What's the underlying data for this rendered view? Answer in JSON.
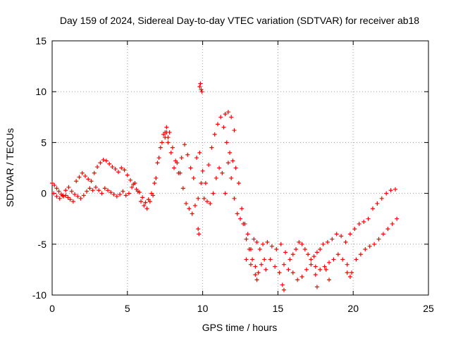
{
  "chart_data": {
    "type": "scatter",
    "title": "Day 159 of 2024, Sidereal Day-to-day VTEC variation (SDTVAR) for receiver ab18",
    "xlabel": "GPS time / hours",
    "ylabel": "SDTVAR / TECUs",
    "xlim": [
      0,
      25
    ],
    "ylim": [
      -10,
      15
    ],
    "x_ticks": [
      0,
      5,
      10,
      15,
      20,
      25
    ],
    "y_ticks": [
      -10,
      -5,
      0,
      5,
      10,
      15
    ],
    "x_tick_labels": [
      "0",
      "5",
      "10",
      "15",
      "20",
      "25"
    ],
    "y_tick_labels": [
      "-10",
      "-5",
      "0",
      "5",
      "10",
      "15"
    ],
    "grid": true,
    "marker": "+",
    "color": "#ff0000",
    "series": [
      {
        "name": "SDTVAR",
        "x": [
          0.0,
          0.15,
          0.3,
          0.45,
          0.6,
          0.75,
          0.9,
          1.05,
          1.2,
          1.4,
          1.6,
          1.8,
          2.0,
          2.2,
          2.4,
          2.6,
          2.8,
          3.0,
          3.2,
          3.4,
          3.6,
          3.8,
          4.0,
          4.2,
          4.4,
          4.6,
          4.8,
          5.0,
          5.2,
          5.4,
          5.6,
          5.8,
          6.0,
          6.2,
          6.4,
          6.6,
          6.8,
          7.0,
          7.2,
          7.4,
          7.6,
          7.8,
          8.0,
          8.2,
          8.4,
          8.6,
          8.8,
          9.0,
          9.2,
          9.4,
          9.6,
          9.8,
          10.0,
          10.2,
          10.4,
          10.6,
          10.8,
          11.0,
          11.2,
          11.4,
          11.6,
          11.8,
          12.0,
          12.2,
          12.4,
          12.6,
          12.8,
          13.0,
          13.2,
          13.4,
          13.6,
          13.8,
          14.0,
          14.3,
          14.6,
          14.9,
          15.2,
          15.5,
          15.8,
          16.0,
          16.2,
          16.4,
          16.6,
          16.8,
          17.0,
          17.2,
          17.4,
          17.6,
          17.8,
          18.0,
          18.3,
          18.6,
          18.9,
          19.2,
          19.5,
          19.8,
          20.1,
          20.4,
          20.7,
          21.0,
          21.3,
          21.6,
          21.9,
          22.2,
          22.5,
          22.8,
          0.1,
          0.3,
          0.5,
          0.7,
          0.9,
          1.1,
          1.3,
          1.5,
          1.7,
          1.9,
          2.1,
          2.3,
          2.5,
          2.7,
          2.9,
          3.1,
          3.3,
          3.5,
          3.7,
          3.9,
          4.1,
          4.3,
          4.5,
          4.7,
          4.9,
          5.1,
          5.3,
          5.5,
          5.7,
          5.9,
          6.1,
          6.3,
          6.5,
          6.7,
          6.9,
          7.1,
          7.3,
          7.5,
          7.7,
          7.9,
          8.1,
          8.3,
          8.5,
          8.7,
          8.9,
          9.1,
          9.3,
          9.5,
          9.7,
          9.9,
          10.1,
          10.3,
          10.5,
          10.7,
          10.9,
          11.1,
          11.3,
          11.5,
          11.7,
          11.9,
          12.1,
          12.3,
          12.5,
          12.7,
          12.9,
          13.1,
          13.3,
          13.5,
          13.7,
          13.9,
          14.2,
          14.5,
          14.8,
          15.1,
          15.4,
          15.7,
          16.0,
          16.3,
          16.6,
          16.9,
          17.2,
          17.5,
          17.8,
          18.1,
          18.4,
          18.7,
          19.0,
          19.3,
          19.6,
          19.9,
          20.2,
          20.5,
          20.8,
          21.1,
          21.4,
          21.7,
          22.0,
          22.3,
          22.6,
          22.9,
          9.8,
          9.85,
          9.9,
          9.95,
          11.5,
          11.7,
          11.9,
          12.1,
          7.5,
          7.6,
          7.7,
          13.5,
          13.6,
          14.1,
          15.3,
          15.4,
          17.5,
          17.6,
          18.2,
          18.4,
          19.6,
          19.8,
          9.7,
          9.75,
          12.9,
          13.2
        ],
        "y": [
          1.0,
          0.8,
          0.5,
          0.2,
          -0.1,
          -0.3,
          -0.2,
          -0.4,
          -0.6,
          -0.8,
          1.2,
          1.6,
          2.0,
          1.7,
          1.4,
          1.2,
          2.0,
          2.6,
          3.0,
          3.3,
          3.2,
          2.9,
          2.6,
          2.4,
          2.1,
          2.5,
          2.3,
          1.8,
          1.3,
          0.9,
          0.4,
          0.1,
          -0.4,
          -0.9,
          -0.6,
          0.0,
          1.0,
          3.0,
          4.5,
          5.8,
          6.5,
          6.0,
          4.5,
          3.2,
          2.0,
          3.5,
          4.8,
          3.8,
          2.5,
          1.5,
          3.5,
          4.0,
          2.2,
          1.0,
          2.8,
          4.5,
          5.8,
          6.8,
          7.5,
          6.5,
          5.0,
          4.0,
          3.2,
          2.5,
          1.0,
          -1.5,
          -3.0,
          -4.0,
          -5.5,
          -4.5,
          -4.8,
          -5.5,
          -5.0,
          -4.8,
          -5.2,
          -5.5,
          -5.0,
          -5.8,
          -6.5,
          -6.0,
          -5.5,
          -4.8,
          -5.0,
          -5.5,
          -6.0,
          -6.5,
          -6.2,
          -5.8,
          -5.5,
          -5.0,
          -4.8,
          -4.5,
          -4.0,
          -4.2,
          -4.8,
          -4.0,
          -3.5,
          -3.0,
          -2.8,
          -2.5,
          -1.5,
          -1.0,
          -0.5,
          0.0,
          0.3,
          0.4,
          0.0,
          -0.3,
          -0.5,
          -0.2,
          0.3,
          0.6,
          0.2,
          -0.1,
          -0.3,
          -0.5,
          -0.2,
          0.2,
          0.5,
          0.3,
          0.6,
          0.3,
          0.0,
          0.5,
          0.3,
          0.1,
          -0.1,
          -0.3,
          -0.1,
          0.2,
          -0.2,
          0.0,
          0.6,
          1.0,
          0.2,
          -0.8,
          -1.2,
          -1.5,
          -0.8,
          -0.2,
          1.5,
          3.5,
          5.0,
          6.0,
          5.5,
          4.0,
          2.5,
          3.0,
          2.0,
          0.5,
          -1.0,
          -1.5,
          -2.0,
          -1.2,
          -0.5,
          1.0,
          -0.5,
          -0.8,
          -1.0,
          0.0,
          1.5,
          2.5,
          2.0,
          0.0,
          3.0,
          1.5,
          -0.5,
          -2.0,
          -2.5,
          -3.0,
          -4.5,
          -5.5,
          -6.5,
          -7.2,
          -7.8,
          -7.0,
          -7.5,
          -6.5,
          -7.2,
          -7.8,
          -7.0,
          -7.5,
          -7.8,
          -8.5,
          -8.2,
          -7.5,
          -7.0,
          -7.2,
          -7.5,
          -7.2,
          -6.8,
          -6.5,
          -6.0,
          -6.5,
          -7.0,
          -7.8,
          -6.5,
          -6.0,
          -5.5,
          -5.2,
          -5.0,
          -4.5,
          -4.0,
          -3.5,
          -3.0,
          -2.5,
          10.5,
          10.8,
          10.2,
          10.0,
          7.8,
          8.0,
          7.5,
          6.2,
          5.5,
          6.0,
          5.0,
          -8.0,
          -8.5,
          -6.5,
          -9.0,
          -9.5,
          -8.0,
          -9.2,
          -7.5,
          -8.5,
          -7.8,
          -8.2,
          -3.5,
          -4.0,
          -6.5,
          -7.0
        ]
      }
    ]
  }
}
